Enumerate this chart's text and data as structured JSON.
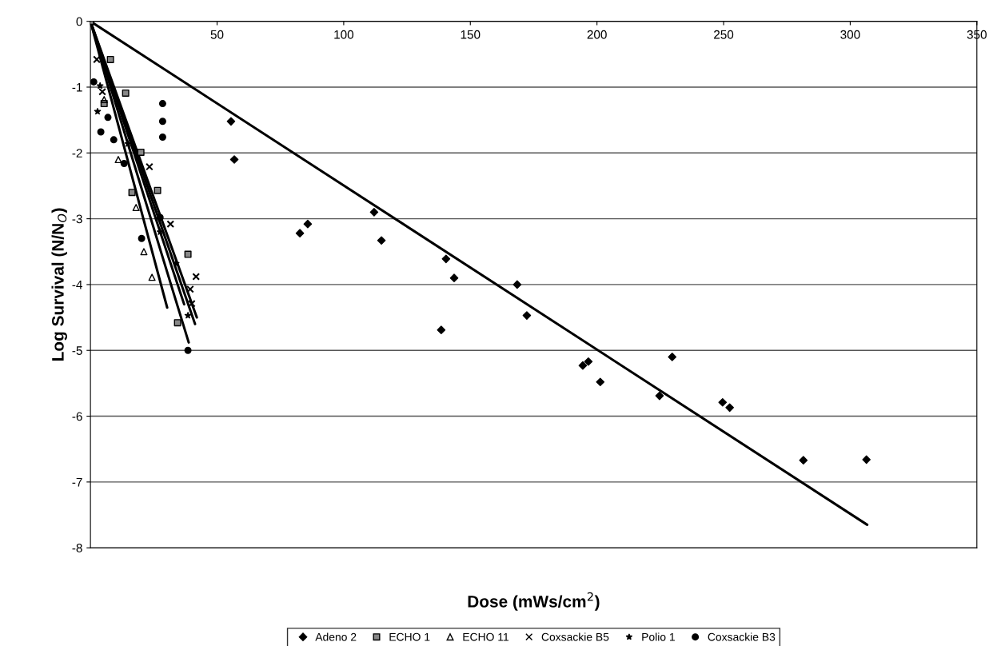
{
  "chart_data": {
    "type": "scatter",
    "xlabel": "Dose (mWs/cm$^{2}$)",
    "ylabel": "Log Survival (N/N$_{O}$)",
    "xlim": [
      0,
      350
    ],
    "xticks": [
      {
        "value": 0,
        "label": null
      },
      50,
      100,
      150,
      200,
      250,
      300,
      350
    ],
    "ylim": [
      -8,
      0
    ],
    "yticks": [
      -8,
      -7,
      -6,
      -5,
      -4,
      -3,
      -2,
      -1,
      0
    ],
    "grid": "y",
    "legend": "bottom",
    "series": [
      {
        "name": "Adeno 2",
        "color": "#000000",
        "marker": "diamond",
        "x": [
          55.5,
          56.8,
          82.7,
          85.8,
          112,
          114.9,
          140.4,
          143.6,
          138.5,
          168.5,
          172.3,
          194.4,
          196.6,
          201.3,
          229.7,
          224.7,
          249.6,
          252.4,
          281.5,
          306.4
        ],
        "values": [
          -1.52,
          -2.1,
          -3.22,
          -3.08,
          -2.9,
          -3.33,
          -3.61,
          -3.9,
          -4.69,
          -4.0,
          -4.47,
          -5.23,
          -5.17,
          -5.48,
          -5.1,
          -5.69,
          -5.79,
          -5.87,
          -6.67,
          -6.66
        ]
      },
      {
        "name": "ECHO 1",
        "color": "#000000",
        "marker": "square",
        "x": [
          0,
          5.4,
          7.9,
          13.9,
          16.4,
          19.9,
          26.5,
          38.5,
          34.4
        ],
        "values": [
          0,
          -1.25,
          -0.58,
          -1.09,
          -2.6,
          -1.99,
          -2.57,
          -3.54,
          -4.58
        ]
      },
      {
        "name": "ECHO 11",
        "color": "#000000",
        "marker": "triangle",
        "x": [
          5.4,
          11,
          18,
          21.1,
          24.3
        ],
        "values": [
          -1.19,
          -2.1,
          -2.83,
          -3.5,
          -3.89
        ]
      },
      {
        "name": "Coxsackie B5",
        "color": "#000000",
        "marker": "cross",
        "x": [
          2.5,
          4.7,
          23.3,
          31.6,
          39.4,
          40,
          41.7
        ],
        "values": [
          -0.58,
          -1.07,
          -2.21,
          -3.08,
          -4.07,
          -4.29,
          -3.88
        ]
      },
      {
        "name": "Polio 1",
        "color": "#000000",
        "marker": "star",
        "x": [
          2.8,
          3.8,
          14.8,
          27.5,
          33.8,
          38.5
        ],
        "values": [
          -1.37,
          -0.98,
          -1.86,
          -3.2,
          -3.68,
          -4.47
        ]
      },
      {
        "name": "Coxsackie B3",
        "color": "#000000",
        "marker": "circle",
        "x": [
          1.3,
          4.1,
          6.9,
          9.2,
          13.3,
          20.2,
          27.5,
          28.5,
          28.5,
          28.5,
          38.5
        ],
        "values": [
          -0.92,
          -1.68,
          -1.46,
          -1.8,
          -2.16,
          -3.3,
          -2.98,
          -1.25,
          -1.52,
          -1.76,
          -5.0
        ]
      },
      {
        "type": "line",
        "color": "#000000",
        "marker": "none",
        "x": [
          0,
          306.7
        ],
        "values": [
          0,
          -7.65
        ]
      },
      {
        "type": "line",
        "color": "#000000",
        "marker": "none",
        "x": [
          0,
          37
        ],
        "values": [
          0,
          -4.3
        ]
      },
      {
        "type": "line",
        "color": "#000000",
        "marker": "none",
        "x": [
          0,
          30.3
        ],
        "values": [
          0,
          -4.35
        ]
      },
      {
        "type": "line",
        "color": "#000000",
        "marker": "none",
        "x": [
          0,
          42
        ],
        "values": [
          0,
          -4.5
        ]
      },
      {
        "type": "line",
        "color": "#000000",
        "marker": "none",
        "x": [
          0,
          41.3
        ],
        "values": [
          0,
          -4.6
        ]
      },
      {
        "type": "line",
        "color": "#000000",
        "marker": "none",
        "x": [
          0,
          38.8
        ],
        "values": [
          0,
          -4.88
        ]
      }
    ]
  }
}
